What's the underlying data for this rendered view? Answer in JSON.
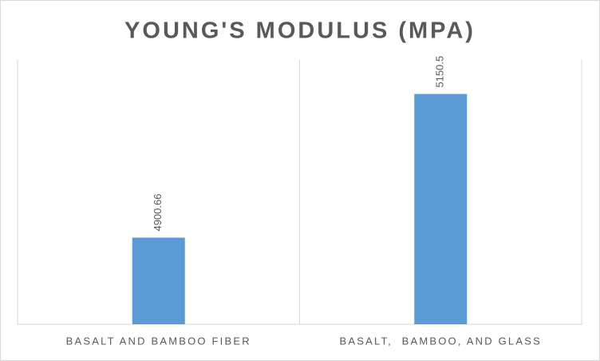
{
  "chart_data": {
    "type": "bar",
    "title": "YOUNG'S MODULUS (MPA)",
    "categories": [
      "BASALT AND BAMBOO FIBER",
      "BASALT,  BAMBOO, AND GLASS"
    ],
    "values": [
      4900.66,
      5150.5
    ],
    "color": "#5b9bd5",
    "ylim": [
      4750,
      5200
    ],
    "grid": false
  }
}
